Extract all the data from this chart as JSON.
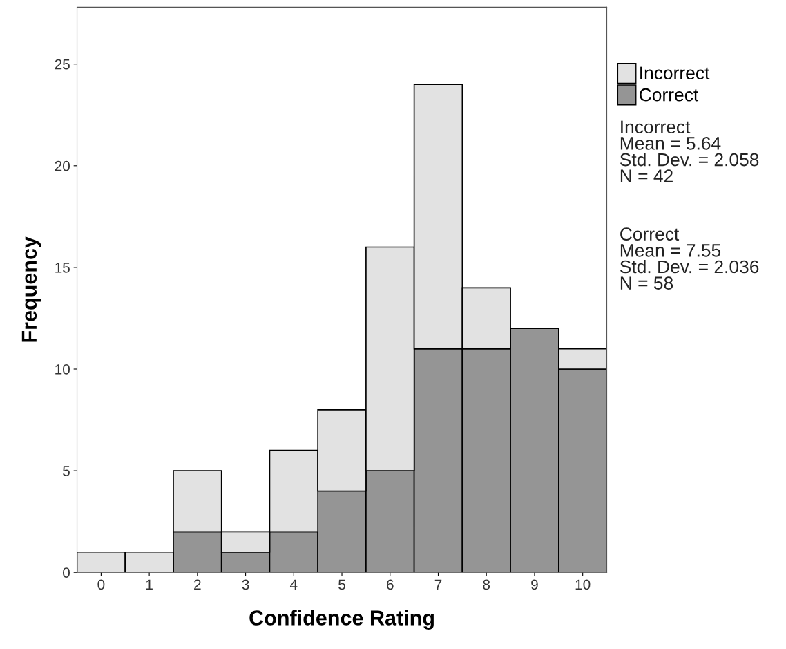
{
  "chart_data": {
    "type": "bar",
    "stacked": true,
    "xlabel": "Confidence Rating",
    "ylabel": "Frequency",
    "categories": [
      "0",
      "1",
      "2",
      "3",
      "4",
      "5",
      "6",
      "7",
      "8",
      "9",
      "10"
    ],
    "series": [
      {
        "name": "Correct",
        "color": "#959595",
        "values": [
          0,
          0,
          2,
          1,
          2,
          4,
          5,
          11,
          11,
          12,
          10
        ]
      },
      {
        "name": "Incorrect",
        "color": "#e2e2e2",
        "values": [
          1,
          1,
          3,
          1,
          4,
          4,
          11,
          13,
          3,
          0,
          1
        ]
      }
    ],
    "ylim": [
      0,
      27.8
    ],
    "yticks": [
      0,
      5,
      10,
      15,
      20,
      25
    ],
    "grid": false,
    "legend": "top right",
    "annotations": [
      "Incorrect\nMean = 5.64\nStd. Dev. = 2.058\nN = 42",
      "Correct\nMean = 7.55\nStd. Dev. = 2.036\nN = 58"
    ]
  }
}
